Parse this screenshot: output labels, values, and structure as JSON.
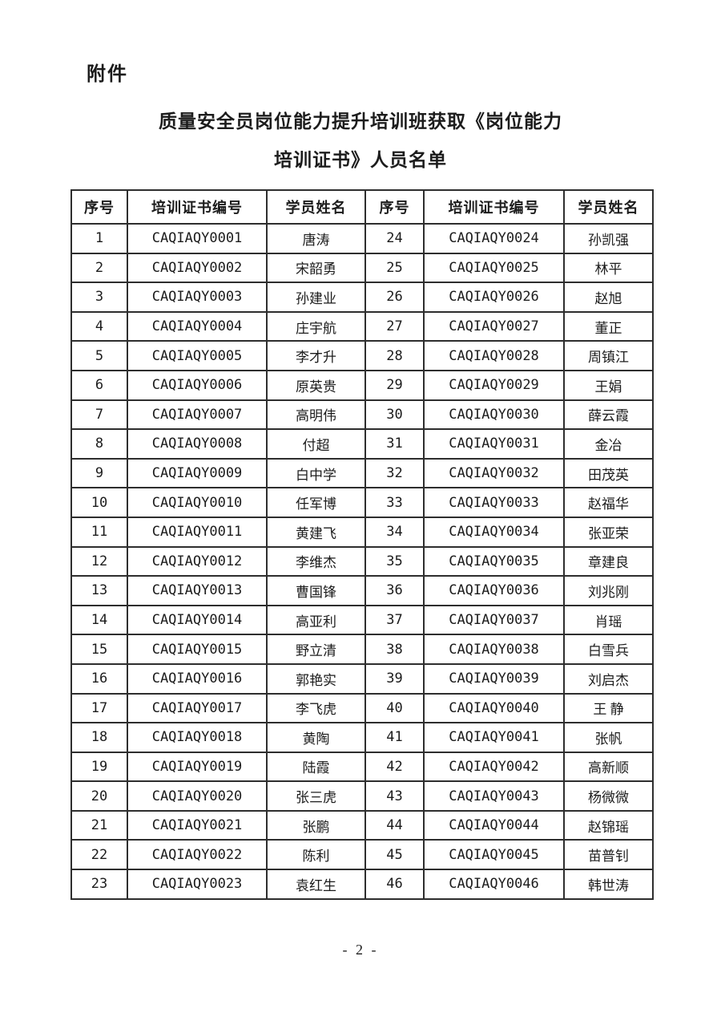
{
  "page": {
    "attachment_label": "附件",
    "title_line1": "质量安全员岗位能力提升培训班获取《岗位能力",
    "title_line2": "培训证书》人员名单",
    "page_number": "- 2 -"
  },
  "table": {
    "headers": [
      "序号",
      "培训证书编号",
      "学员姓名",
      "序号",
      "培训证书编号",
      "学员姓名"
    ],
    "rows": [
      [
        "1",
        "CAQIAQY0001",
        "唐涛",
        "24",
        "CAQIAQY0024",
        "孙凯强"
      ],
      [
        "2",
        "CAQIAQY0002",
        "宋韶勇",
        "25",
        "CAQIAQY0025",
        "林平"
      ],
      [
        "3",
        "CAQIAQY0003",
        "孙建业",
        "26",
        "CAQIAQY0026",
        "赵旭"
      ],
      [
        "4",
        "CAQIAQY0004",
        "庄宇航",
        "27",
        "CAQIAQY0027",
        "董正"
      ],
      [
        "5",
        "CAQIAQY0005",
        "李才升",
        "28",
        "CAQIAQY0028",
        "周镇江"
      ],
      [
        "6",
        "CAQIAQY0006",
        "原英贵",
        "29",
        "CAQIAQY0029",
        "王娟"
      ],
      [
        "7",
        "CAQIAQY0007",
        "高明伟",
        "30",
        "CAQIAQY0030",
        "薛云霞"
      ],
      [
        "8",
        "CAQIAQY0008",
        "付超",
        "31",
        "CAQIAQY0031",
        "金冶"
      ],
      [
        "9",
        "CAQIAQY0009",
        "白中学",
        "32",
        "CAQIAQY0032",
        "田茂英"
      ],
      [
        "10",
        "CAQIAQY0010",
        "任军博",
        "33",
        "CAQIAQY0033",
        "赵福华"
      ],
      [
        "11",
        "CAQIAQY0011",
        "黄建飞",
        "34",
        "CAQIAQY0034",
        "张亚荣"
      ],
      [
        "12",
        "CAQIAQY0012",
        "李维杰",
        "35",
        "CAQIAQY0035",
        "章建良"
      ],
      [
        "13",
        "CAQIAQY0013",
        "曹国锋",
        "36",
        "CAQIAQY0036",
        "刘兆刚"
      ],
      [
        "14",
        "CAQIAQY0014",
        "高亚利",
        "37",
        "CAQIAQY0037",
        "肖瑶"
      ],
      [
        "15",
        "CAQIAQY0015",
        "野立清",
        "38",
        "CAQIAQY0038",
        "白雪兵"
      ],
      [
        "16",
        "CAQIAQY0016",
        "郭艳实",
        "39",
        "CAQIAQY0039",
        "刘启杰"
      ],
      [
        "17",
        "CAQIAQY0017",
        "李飞虎",
        "40",
        "CAQIAQY0040",
        "王 静"
      ],
      [
        "18",
        "CAQIAQY0018",
        "黄陶",
        "41",
        "CAQIAQY0041",
        "张帆"
      ],
      [
        "19",
        "CAQIAQY0019",
        "陆霞",
        "42",
        "CAQIAQY0042",
        "高新顺"
      ],
      [
        "20",
        "CAQIAQY0020",
        "张三虎",
        "43",
        "CAQIAQY0043",
        "杨微微"
      ],
      [
        "21",
        "CAQIAQY0021",
        "张鹏",
        "44",
        "CAQIAQY0044",
        "赵锦瑶"
      ],
      [
        "22",
        "CAQIAQY0022",
        "陈利",
        "45",
        "CAQIAQY0045",
        "苗普钊"
      ],
      [
        "23",
        "CAQIAQY0023",
        "袁红生",
        "46",
        "CAQIAQY0046",
        "韩世涛"
      ]
    ]
  }
}
